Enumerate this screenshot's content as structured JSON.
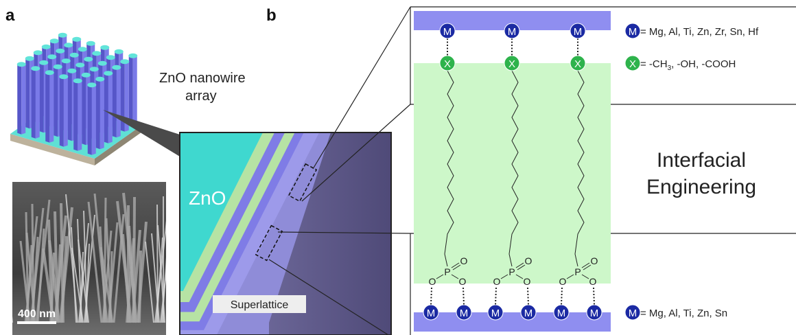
{
  "panel_labels": {
    "a": "a",
    "b": "b"
  },
  "nanowire_label": [
    "ZnO nanowire",
    "array"
  ],
  "sem": {
    "scale_bar": "400 nm"
  },
  "cross_section": {
    "zno": "ZnO",
    "superlattice": "Superlattice"
  },
  "molecule": {
    "metal": "M",
    "head": "X",
    "oxygen": "O",
    "phosphorus": "P"
  },
  "legend": {
    "top_metal": "= Mg, Al, Ti, Zn, Zr, Sn, Hf",
    "head_group": {
      "before": "= -CH",
      "subscript": "3",
      "after": ", -OH, -COOH"
    },
    "bottom_metal": "= Mg, Al, Ti, Zn, Sn"
  },
  "title": [
    "Interfacial",
    "Engineering"
  ]
}
